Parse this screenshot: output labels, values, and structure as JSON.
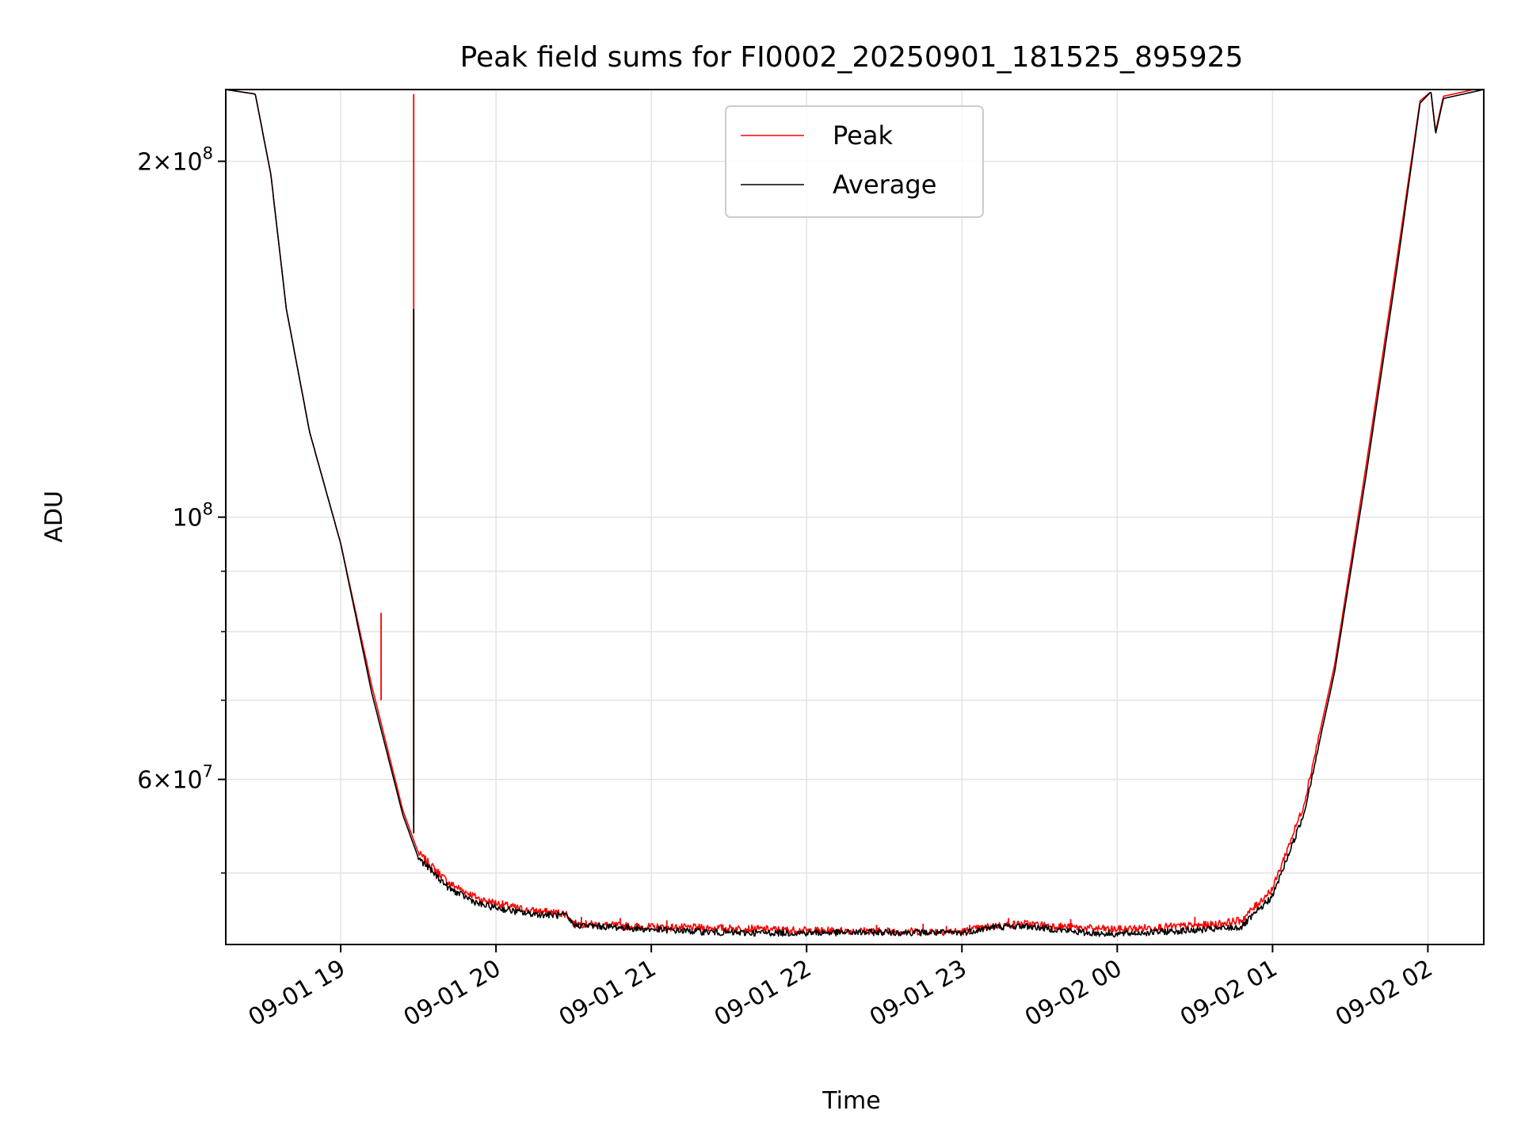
{
  "chart_data": {
    "type": "line",
    "title": "Peak field sums for FI0002_20250901_181525_895925",
    "xlabel": "Time",
    "ylabel": "ADU",
    "yscale": "log",
    "xlim_hours": [
      18.26,
      26.36
    ],
    "ylim": [
      43500000,
      230000000
    ],
    "x_ticks": [
      {
        "hour": 19,
        "label": "09-01 19"
      },
      {
        "hour": 20,
        "label": "09-01 20"
      },
      {
        "hour": 21,
        "label": "09-01 21"
      },
      {
        "hour": 22,
        "label": "09-01 22"
      },
      {
        "hour": 23,
        "label": "09-01 23"
      },
      {
        "hour": 24,
        "label": "09-02 00"
      },
      {
        "hour": 25,
        "label": "09-02 01"
      },
      {
        "hour": 26,
        "label": "09-02 02"
      }
    ],
    "y_major_ticks": [
      {
        "value": 200000000,
        "mantissa": "2",
        "exponent": "8"
      },
      {
        "value": 100000000,
        "mantissa": "",
        "exponent": "8"
      },
      {
        "value": 60000000,
        "mantissa": "6",
        "exponent": "7"
      }
    ],
    "y_minor_ticks": [
      50000000,
      70000000,
      80000000,
      90000000
    ],
    "times_symbol": "×",
    "base": "10",
    "grid": true,
    "legend": {
      "position": "top-center",
      "entries": [
        "Peak",
        "Average"
      ]
    },
    "series": [
      {
        "name": "Peak",
        "color": "#ff0000",
        "x": [
          18.26,
          18.45,
          18.55,
          18.65,
          18.8,
          19.0,
          19.2,
          19.4,
          19.5,
          19.7,
          19.9,
          20.2,
          20.45,
          20.5,
          21.0,
          21.5,
          22.0,
          22.5,
          23.0,
          23.2,
          23.4,
          23.6,
          23.8,
          24.0,
          24.3,
          24.6,
          24.8,
          25.0,
          25.2,
          25.4,
          25.6,
          25.8,
          25.95,
          26.02,
          26.05,
          26.1,
          26.36
        ],
        "y": [
          230000000,
          228000000,
          195000000,
          150000000,
          118000000,
          95000000,
          72000000,
          56500000,
          52000000,
          49000000,
          47500000,
          46500000,
          46200000,
          45300000,
          45000000,
          44900000,
          44700000,
          44650000,
          44600000,
          45100000,
          45300000,
          45100000,
          44900000,
          44800000,
          45000000,
          45200000,
          45600000,
          48500000,
          57000000,
          75000000,
          110000000,
          165000000,
          225000000,
          229000000,
          212000000,
          227000000,
          231000000
        ],
        "spikes": [
          {
            "x": 19.26,
            "base": 70000000,
            "top": 83000000
          },
          {
            "x": 19.47,
            "base": 56000000,
            "top": 228000000
          },
          {
            "x": 20.55,
            "base": 45300000,
            "top": 45900000
          },
          {
            "x": 20.8,
            "base": 45200000,
            "top": 45800000
          },
          {
            "x": 21.1,
            "base": 45000000,
            "top": 45600000
          },
          {
            "x": 22.45,
            "base": 44650000,
            "top": 45200000
          },
          {
            "x": 22.75,
            "base": 44650000,
            "top": 45300000
          },
          {
            "x": 22.9,
            "base": 44600000,
            "top": 45100000
          },
          {
            "x": 23.05,
            "base": 44600000,
            "top": 45200000
          },
          {
            "x": 23.3,
            "base": 45200000,
            "top": 45800000
          },
          {
            "x": 23.7,
            "base": 45000000,
            "top": 45700000
          },
          {
            "x": 24.5,
            "base": 45100000,
            "top": 45900000
          }
        ]
      },
      {
        "name": "Average",
        "color": "#000000",
        "x": [
          18.26,
          18.45,
          18.55,
          18.65,
          18.8,
          19.0,
          19.2,
          19.4,
          19.5,
          19.7,
          19.9,
          20.2,
          20.45,
          20.5,
          21.0,
          21.5,
          22.0,
          22.5,
          23.0,
          23.2,
          23.4,
          23.6,
          23.8,
          24.0,
          24.3,
          24.6,
          24.8,
          25.0,
          25.2,
          25.4,
          25.6,
          25.8,
          25.95,
          26.02,
          26.05,
          26.1,
          26.36
        ],
        "y": [
          230000000,
          228000000,
          195000000,
          150000000,
          118000000,
          95000000,
          71000000,
          56000000,
          51500000,
          48500000,
          47000000,
          46200000,
          46000000,
          45200000,
          44800000,
          44500000,
          44500000,
          44550000,
          44500000,
          45000000,
          45100000,
          44800000,
          44500000,
          44400000,
          44600000,
          44800000,
          45000000,
          47800000,
          56000000,
          74000000,
          108000000,
          162000000,
          224000000,
          229000000,
          211000000,
          226000000,
          230000000
        ],
        "spikes": [
          {
            "x": 19.47,
            "base": 54000000,
            "top": 150000000
          }
        ]
      }
    ]
  }
}
